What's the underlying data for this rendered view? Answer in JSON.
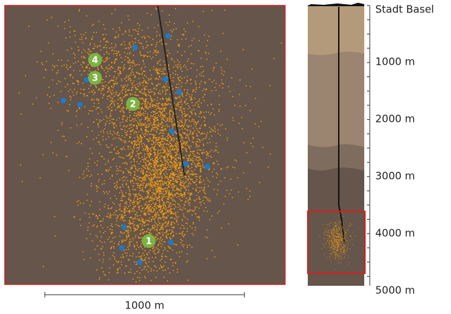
{
  "markers": [
    "1",
    "2",
    "3",
    "4"
  ],
  "scale_bar": "1000 m",
  "depth_axis": {
    "top_label": "Stadt Basel",
    "labels": [
      "1000 m",
      "2000 m",
      "3000 m",
      "4000 m",
      "5000 m"
    ]
  }
}
